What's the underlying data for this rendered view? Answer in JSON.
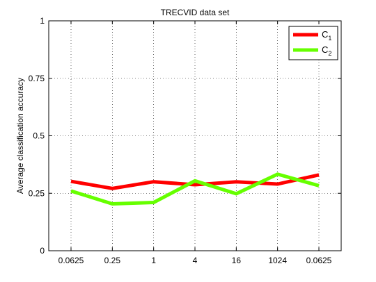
{
  "chart_data": {
    "type": "line",
    "title": "TRECVID data set",
    "xlabel": "",
    "ylabel": "Average classification accuracy",
    "categories": [
      "0.0625",
      "0.25",
      "1",
      "4",
      "16",
      "1024",
      "0.0625"
    ],
    "ylim": [
      0,
      1
    ],
    "yticks": [
      0,
      0.25,
      0.5,
      0.75,
      1
    ],
    "ytick_labels": [
      "0",
      "0.25",
      "0.5",
      "0.75",
      "1"
    ],
    "grid": true,
    "legend_position": "top-right",
    "series": [
      {
        "name": "C",
        "subscript": "1",
        "color": "#ff0000",
        "values": [
          0.302,
          0.271,
          0.3,
          0.287,
          0.3,
          0.29,
          0.33
        ]
      },
      {
        "name": "C",
        "subscript": "2",
        "color": "#66ff00",
        "values": [
          0.26,
          0.204,
          0.21,
          0.304,
          0.248,
          0.333,
          0.283
        ]
      }
    ]
  }
}
